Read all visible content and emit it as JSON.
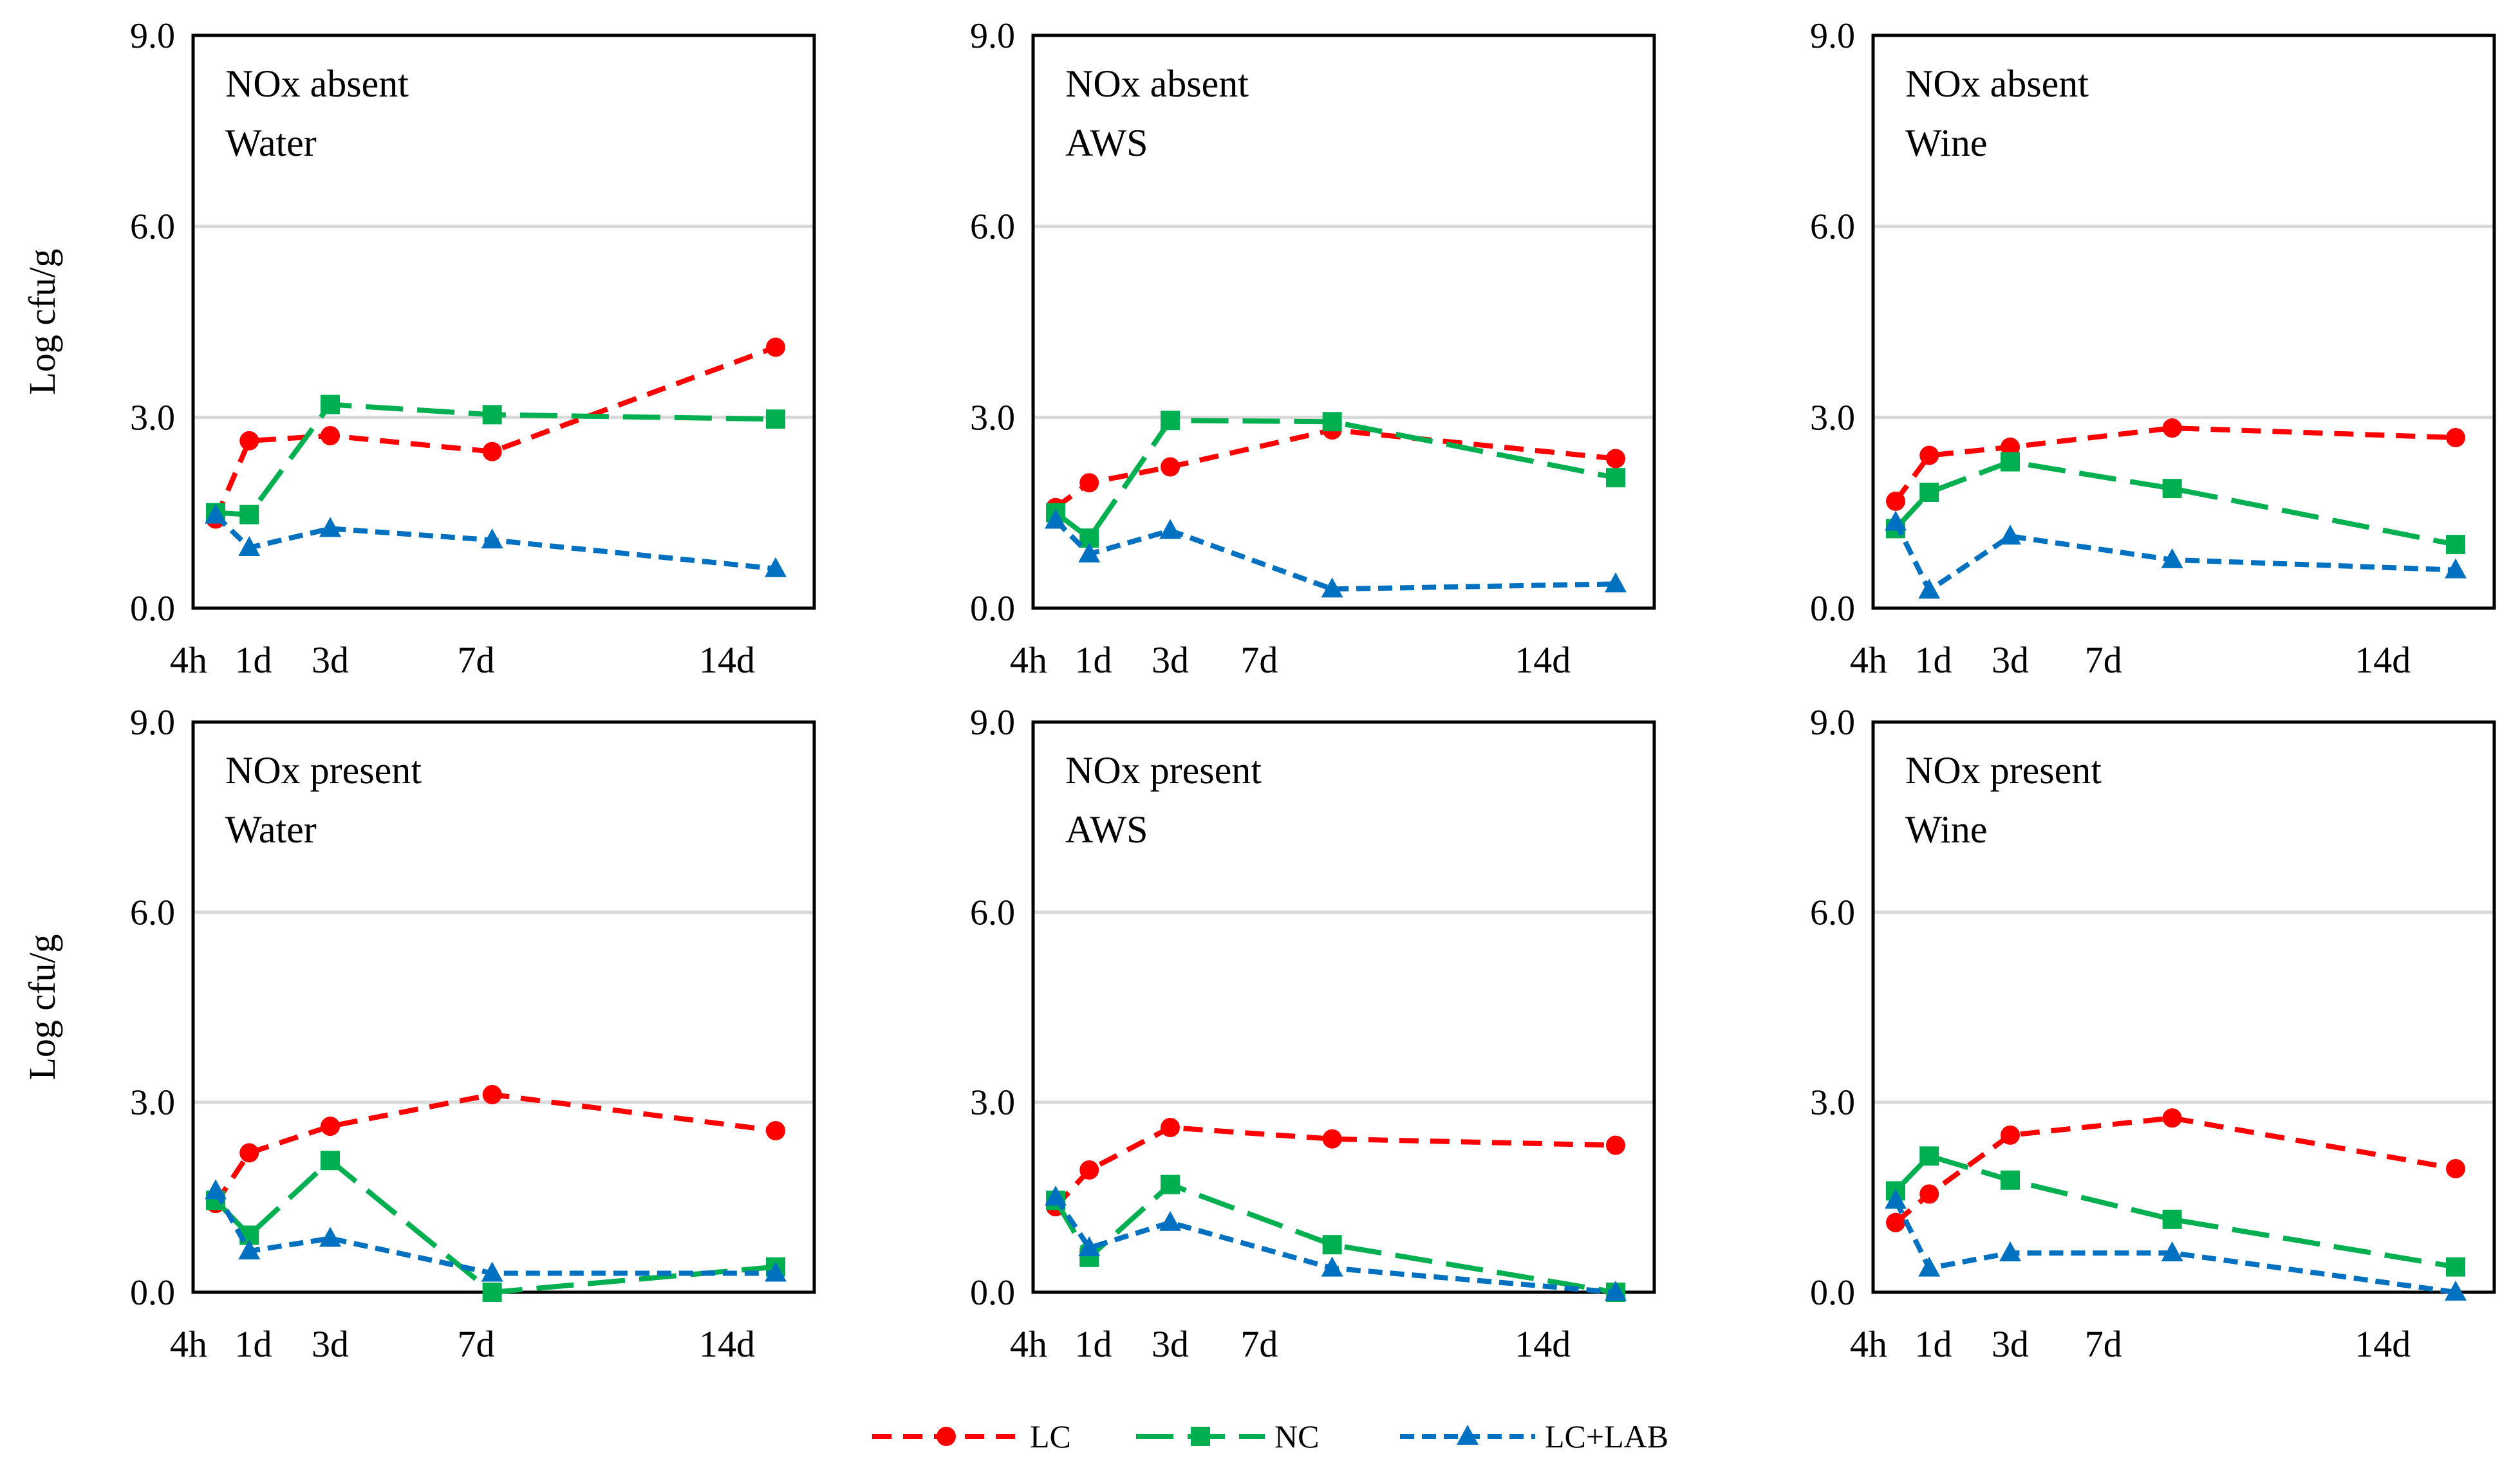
{
  "figure": {
    "ylabel": "Log cfu/g",
    "legend": {
      "placement": "bottom-center",
      "entries": [
        {
          "series": "LC",
          "label": "LC",
          "color": "#ff0000",
          "marker": "circle",
          "dash": "short-dash"
        },
        {
          "series": "NC",
          "label": "NC",
          "color": "#00b050",
          "marker": "square",
          "dash": "long-dash"
        },
        {
          "series": "LC+LAB",
          "label": "LC+LAB",
          "color": "#0070c0",
          "marker": "triangle",
          "dash": "dot-dash"
        }
      ]
    }
  },
  "chart_data": [
    {
      "type": "line",
      "title": [
        "NOx absent",
        "Water"
      ],
      "ylabel": "Log cfu/g",
      "ylim": [
        0,
        9
      ],
      "yticks": [
        0.0,
        3.0,
        6.0,
        9.0
      ],
      "ytick_labels": [
        "0.0",
        "3.0",
        "6.0",
        "9.0"
      ],
      "x_days": [
        0.17,
        1,
        3,
        7,
        14
      ],
      "x_tick_labels": [
        {
          "label": "4h",
          "day": -0.5
        },
        {
          "label": "1d",
          "day": 1.1
        },
        {
          "label": "3d",
          "day": 3
        },
        {
          "label": "7d",
          "day": 6.6
        },
        {
          "label": "14d",
          "day": 12.8
        }
      ],
      "series": [
        {
          "name": "LC",
          "values": [
            1.4,
            2.63,
            2.71,
            2.46,
            4.1
          ]
        },
        {
          "name": "NC",
          "values": [
            1.5,
            1.47,
            3.2,
            3.04,
            2.97
          ]
        },
        {
          "name": "LC+LAB",
          "values": [
            1.46,
            0.95,
            1.25,
            1.07,
            0.62
          ]
        }
      ]
    },
    {
      "type": "line",
      "title": [
        "NOx absent",
        "AWS"
      ],
      "ylabel": "",
      "ylim": [
        0,
        9
      ],
      "yticks": [
        0.0,
        3.0,
        6.0,
        9.0
      ],
      "ytick_labels": [
        "0.0",
        "3.0",
        "6.0",
        "9.0"
      ],
      "x_days": [
        0.17,
        1,
        3,
        7,
        14
      ],
      "x_tick_labels": [
        {
          "label": "4h",
          "day": -0.5
        },
        {
          "label": "1d",
          "day": 1.1
        },
        {
          "label": "3d",
          "day": 3
        },
        {
          "label": "7d",
          "day": 5.2
        },
        {
          "label": "14d",
          "day": 12.2
        }
      ],
      "series": [
        {
          "name": "LC",
          "values": [
            1.58,
            1.97,
            2.22,
            2.8,
            2.35
          ]
        },
        {
          "name": "NC",
          "values": [
            1.5,
            1.1,
            2.95,
            2.93,
            2.05
          ]
        },
        {
          "name": "LC+LAB",
          "values": [
            1.38,
            0.85,
            1.22,
            0.3,
            0.38
          ]
        }
      ]
    },
    {
      "type": "line",
      "title": [
        "NOx absent",
        "Wine"
      ],
      "ylabel": "",
      "ylim": [
        0,
        9
      ],
      "yticks": [
        0.0,
        3.0,
        6.0,
        9.0
      ],
      "ytick_labels": [
        "0.0",
        "3.0",
        "6.0",
        "9.0"
      ],
      "x_days": [
        0.17,
        1,
        3,
        7,
        14
      ],
      "x_tick_labels": [
        {
          "label": "4h",
          "day": -0.5
        },
        {
          "label": "1d",
          "day": 1.1
        },
        {
          "label": "3d",
          "day": 3
        },
        {
          "label": "7d",
          "day": 5.3
        },
        {
          "label": "14d",
          "day": 12.2
        }
      ],
      "series": [
        {
          "name": "LC",
          "values": [
            1.68,
            2.4,
            2.53,
            2.83,
            2.68
          ]
        },
        {
          "name": "NC",
          "values": [
            1.25,
            1.82,
            2.3,
            1.88,
            1.0
          ]
        },
        {
          "name": "LC+LAB",
          "values": [
            1.35,
            0.28,
            1.13,
            0.76,
            0.6
          ]
        }
      ]
    },
    {
      "type": "line",
      "title": [
        "NOx present",
        "Water"
      ],
      "ylabel": "Log cfu/g",
      "ylim": [
        0,
        9
      ],
      "yticks": [
        0.0,
        3.0,
        6.0,
        9.0
      ],
      "ytick_labels": [
        "0.0",
        "3.0",
        "6.0",
        "9.0"
      ],
      "x_days": [
        0.17,
        1,
        3,
        7,
        14
      ],
      "x_tick_labels": [
        {
          "label": "4h",
          "day": -0.5
        },
        {
          "label": "1d",
          "day": 1.1
        },
        {
          "label": "3d",
          "day": 3
        },
        {
          "label": "7d",
          "day": 6.6
        },
        {
          "label": "14d",
          "day": 12.8
        }
      ],
      "series": [
        {
          "name": "LC",
          "values": [
            1.4,
            2.2,
            2.62,
            3.12,
            2.55
          ]
        },
        {
          "name": "NC",
          "values": [
            1.45,
            0.9,
            2.08,
            0.0,
            0.4
          ]
        },
        {
          "name": "LC+LAB",
          "values": [
            1.6,
            0.65,
            0.85,
            0.3,
            0.3
          ]
        }
      ]
    },
    {
      "type": "line",
      "title": [
        "NOx present",
        "AWS"
      ],
      "ylabel": "",
      "ylim": [
        0,
        9
      ],
      "yticks": [
        0.0,
        3.0,
        6.0,
        9.0
      ],
      "ytick_labels": [
        "0.0",
        "3.0",
        "6.0",
        "9.0"
      ],
      "x_days": [
        0.17,
        1,
        3,
        7,
        14
      ],
      "x_tick_labels": [
        {
          "label": "4h",
          "day": -0.5
        },
        {
          "label": "1d",
          "day": 1.1
        },
        {
          "label": "3d",
          "day": 3
        },
        {
          "label": "7d",
          "day": 5.2
        },
        {
          "label": "14d",
          "day": 12.2
        }
      ],
      "series": [
        {
          "name": "LC",
          "values": [
            1.35,
            1.93,
            2.6,
            2.42,
            2.32
          ]
        },
        {
          "name": "NC",
          "values": [
            1.45,
            0.55,
            1.7,
            0.75,
            0.0
          ]
        },
        {
          "name": "LC+LAB",
          "values": [
            1.5,
            0.7,
            1.1,
            0.38,
            0.0
          ]
        }
      ]
    },
    {
      "type": "line",
      "title": [
        "NOx present",
        "Wine"
      ],
      "ylabel": "",
      "ylim": [
        0,
        9
      ],
      "yticks": [
        0.0,
        3.0,
        6.0,
        9.0
      ],
      "ytick_labels": [
        "0.0",
        "3.0",
        "6.0",
        "9.0"
      ],
      "x_days": [
        0.17,
        1,
        3,
        7,
        14
      ],
      "x_tick_labels": [
        {
          "label": "4h",
          "day": -0.5
        },
        {
          "label": "1d",
          "day": 1.1
        },
        {
          "label": "3d",
          "day": 3
        },
        {
          "label": "7d",
          "day": 5.3
        },
        {
          "label": "14d",
          "day": 12.2
        }
      ],
      "series": [
        {
          "name": "LC",
          "values": [
            1.1,
            1.55,
            2.48,
            2.75,
            1.95
          ]
        },
        {
          "name": "NC",
          "values": [
            1.6,
            2.15,
            1.77,
            1.15,
            0.4
          ]
        },
        {
          "name": "LC+LAB",
          "values": [
            1.45,
            0.38,
            0.62,
            0.62,
            0.0
          ]
        }
      ]
    }
  ]
}
